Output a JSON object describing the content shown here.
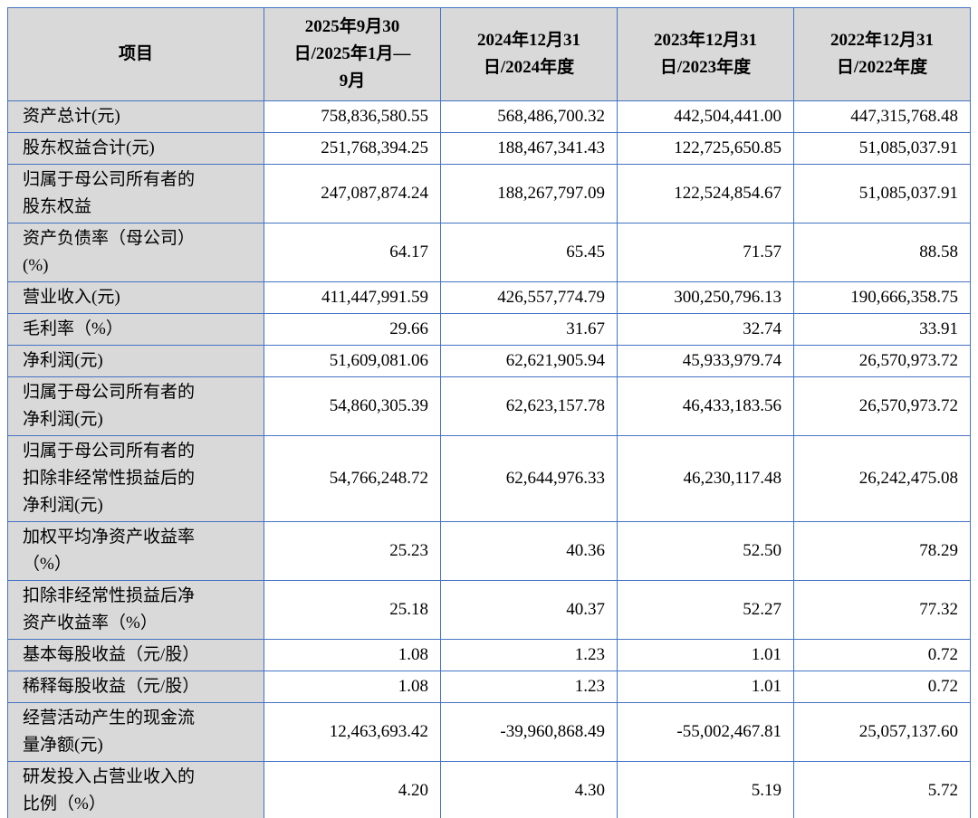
{
  "colors": {
    "border": "#4472c4",
    "label_bg": "#d9d9d9",
    "bottom_rule": "#17375e",
    "text": "#000000"
  },
  "table": {
    "header": {
      "item_label": "项目",
      "columns": [
        "2025年9月30日/2025年1月—9月",
        "2024年12月31日/2024年度",
        "2023年12月31日/2023年度",
        "2022年12月31日/2022年度"
      ]
    },
    "rows": [
      {
        "label": "资产总计(元)",
        "values": [
          "758,836,580.55",
          "568,486,700.32",
          "442,504,441.00",
          "447,315,768.48"
        ]
      },
      {
        "label": "股东权益合计(元)",
        "values": [
          "251,768,394.25",
          "188,467,341.43",
          "122,725,650.85",
          "51,085,037.91"
        ]
      },
      {
        "label": "归属于母公司所有者的股东权益",
        "values": [
          "247,087,874.24",
          "188,267,797.09",
          "122,524,854.67",
          "51,085,037.91"
        ]
      },
      {
        "label": "资产负债率（母公司）(%)",
        "values": [
          "64.17",
          "65.45",
          "71.57",
          "88.58"
        ]
      },
      {
        "label": "营业收入(元)",
        "values": [
          "411,447,991.59",
          "426,557,774.79",
          "300,250,796.13",
          "190,666,358.75"
        ]
      },
      {
        "label": "毛利率（%）",
        "values": [
          "29.66",
          "31.67",
          "32.74",
          "33.91"
        ]
      },
      {
        "label": "净利润(元)",
        "values": [
          "51,609,081.06",
          "62,621,905.94",
          "45,933,979.74",
          "26,570,973.72"
        ]
      },
      {
        "label": "归属于母公司所有者的净利润(元)",
        "values": [
          "54,860,305.39",
          "62,623,157.78",
          "46,433,183.56",
          "26,570,973.72"
        ]
      },
      {
        "label": "归属于母公司所有者的扣除非经常性损益后的净利润(元)",
        "values": [
          "54,766,248.72",
          "62,644,976.33",
          "46,230,117.48",
          "26,242,475.08"
        ]
      },
      {
        "label": "加权平均净资产收益率（%）",
        "values": [
          "25.23",
          "40.36",
          "52.50",
          "78.29"
        ]
      },
      {
        "label": "扣除非经常性损益后净资产收益率（%）",
        "values": [
          "25.18",
          "40.37",
          "52.27",
          "77.32"
        ]
      },
      {
        "label": "基本每股收益（元/股）",
        "values": [
          "1.08",
          "1.23",
          "1.01",
          "0.72"
        ]
      },
      {
        "label": "稀释每股收益（元/股）",
        "values": [
          "1.08",
          "1.23",
          "1.01",
          "0.72"
        ]
      },
      {
        "label": "经营活动产生的现金流量净额(元)",
        "values": [
          "12,463,693.42",
          "-39,960,868.49",
          "-55,002,467.81",
          "25,057,137.60"
        ]
      },
      {
        "label": "研发投入占营业收入的比例（%）",
        "values": [
          "4.20",
          "4.30",
          "5.19",
          "5.72"
        ]
      }
    ]
  }
}
